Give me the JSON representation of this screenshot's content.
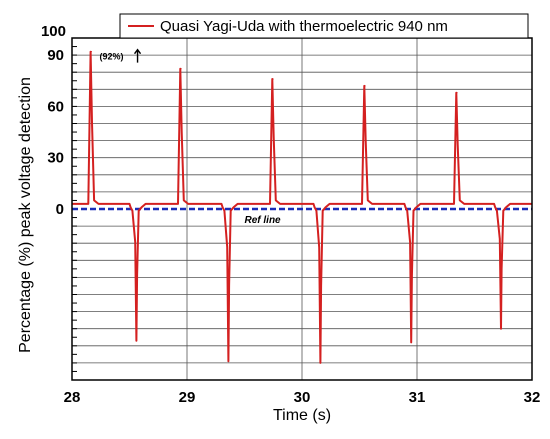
{
  "chart_data": {
    "type": "line",
    "xlabel": "Time (s)",
    "ylabel": "Percentage (%) peak voltage detection",
    "xlim": [
      28,
      32
    ],
    "ylim": [
      -100,
      100
    ],
    "x_ticks": [
      28,
      29,
      30,
      31,
      32
    ],
    "x_tick_labels": [
      "28",
      "29",
      "30",
      "31",
      "32"
    ],
    "y_tick_values": [
      0,
      30,
      60,
      90,
      100
    ],
    "y_tick_labels": [
      "0",
      "30",
      "60",
      "90",
      "100"
    ],
    "grid": true,
    "legend_position": "top-right",
    "colors": {
      "series": "#d42020",
      "ref_line": "#1a2db8"
    },
    "series": [
      {
        "name": "Quasi Yagi-Uda with thermoelectric 940 nm",
        "baseline": 3,
        "peaks": [
          {
            "x": 28.17,
            "y": 92
          },
          {
            "x": 28.95,
            "y": 82
          },
          {
            "x": 29.75,
            "y": 76
          },
          {
            "x": 30.55,
            "y": 72
          },
          {
            "x": 31.35,
            "y": 68
          }
        ],
        "troughs": [
          {
            "x": 28.56,
            "y": -77
          },
          {
            "x": 29.36,
            "y": -89
          },
          {
            "x": 30.16,
            "y": -90
          },
          {
            "x": 30.95,
            "y": -78
          },
          {
            "x": 31.73,
            "y": -70
          }
        ]
      }
    ],
    "reference_line": {
      "label": "Ref line",
      "y": 0
    },
    "annotations": [
      {
        "text": "(92%)",
        "arrow": "up"
      }
    ]
  }
}
